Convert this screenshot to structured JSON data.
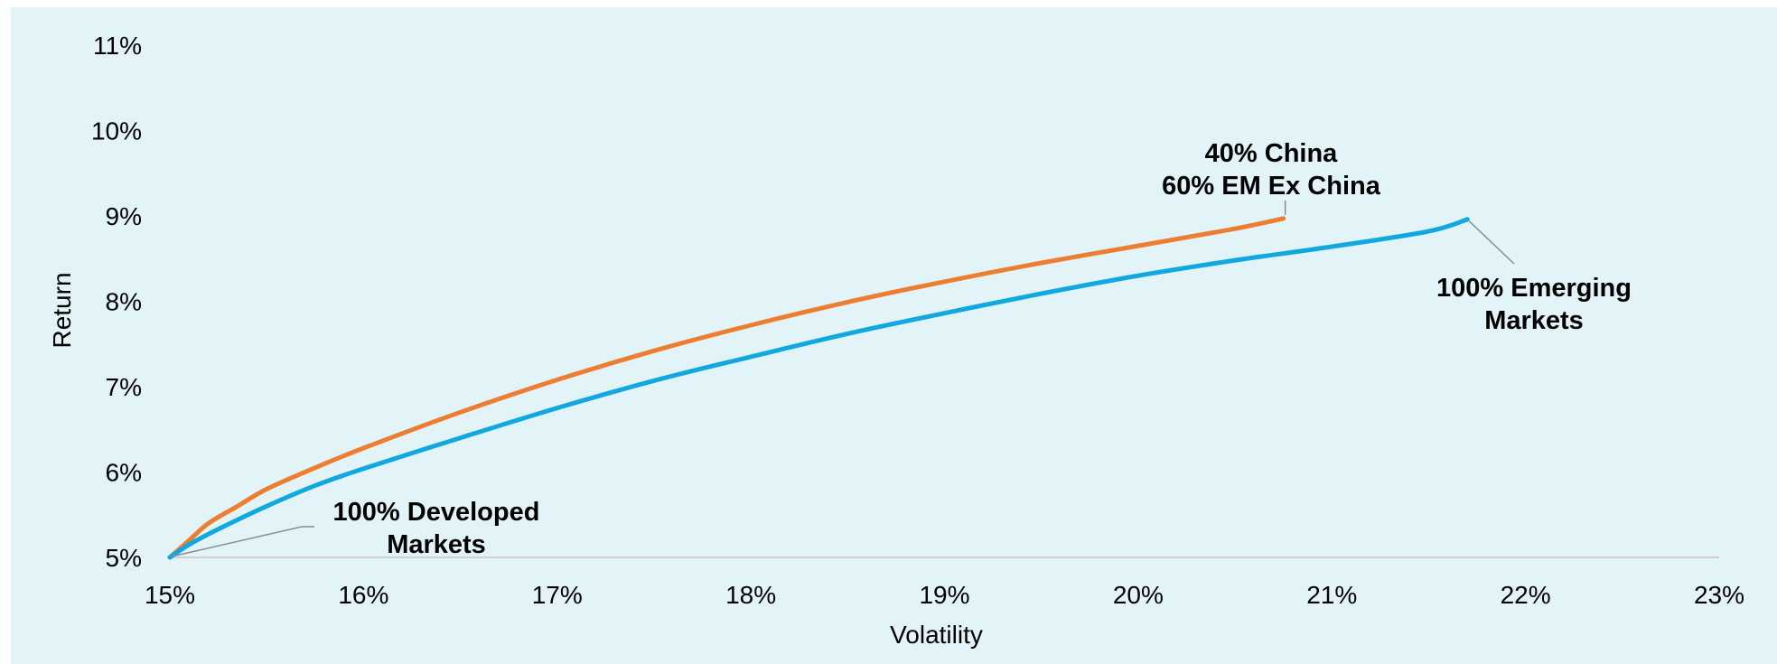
{
  "chart_data": {
    "type": "line",
    "xlabel": "Volatility",
    "ylabel": "Return",
    "xlim": [
      15,
      23
    ],
    "ylim": [
      5,
      11
    ],
    "x_ticks": [
      "15%",
      "16%",
      "17%",
      "18%",
      "19%",
      "20%",
      "21%",
      "22%",
      "23%"
    ],
    "y_ticks": [
      "5%",
      "6%",
      "7%",
      "8%",
      "9%",
      "10%",
      "11%"
    ],
    "grid": false,
    "legend": "none",
    "series": [
      {
        "color": "#ed7d31",
        "points": [
          [
            15.0,
            5.0
          ],
          [
            15.1,
            5.2
          ],
          [
            15.2,
            5.4
          ],
          [
            15.35,
            5.6
          ],
          [
            15.5,
            5.8
          ],
          [
            15.75,
            6.05
          ],
          [
            16.0,
            6.28
          ],
          [
            16.5,
            6.7
          ],
          [
            17.0,
            7.08
          ],
          [
            17.5,
            7.42
          ],
          [
            18.0,
            7.72
          ],
          [
            18.5,
            7.99
          ],
          [
            19.0,
            8.23
          ],
          [
            19.5,
            8.45
          ],
          [
            20.0,
            8.65
          ],
          [
            20.5,
            8.85
          ],
          [
            20.75,
            8.97
          ]
        ]
      },
      {
        "color": "#11a8e0",
        "points": [
          [
            15.0,
            5.0
          ],
          [
            15.1,
            5.15
          ],
          [
            15.25,
            5.33
          ],
          [
            15.5,
            5.6
          ],
          [
            15.75,
            5.84
          ],
          [
            16.0,
            6.04
          ],
          [
            16.5,
            6.4
          ],
          [
            17.0,
            6.75
          ],
          [
            17.5,
            7.07
          ],
          [
            18.0,
            7.35
          ],
          [
            18.5,
            7.62
          ],
          [
            19.0,
            7.86
          ],
          [
            19.5,
            8.09
          ],
          [
            20.0,
            8.3
          ],
          [
            20.5,
            8.48
          ],
          [
            21.0,
            8.64
          ],
          [
            21.5,
            8.82
          ],
          [
            21.7,
            8.96
          ]
        ]
      }
    ],
    "annotations": [
      {
        "lines": [
          "40% China",
          "60% EM Ex China"
        ],
        "point": [
          20.75,
          8.97
        ]
      },
      {
        "lines": [
          "100% Emerging",
          "Markets"
        ],
        "point": [
          21.7,
          8.96
        ]
      },
      {
        "lines": [
          "100% Developed",
          "Markets"
        ],
        "point": [
          15.0,
          5.0
        ]
      }
    ]
  }
}
